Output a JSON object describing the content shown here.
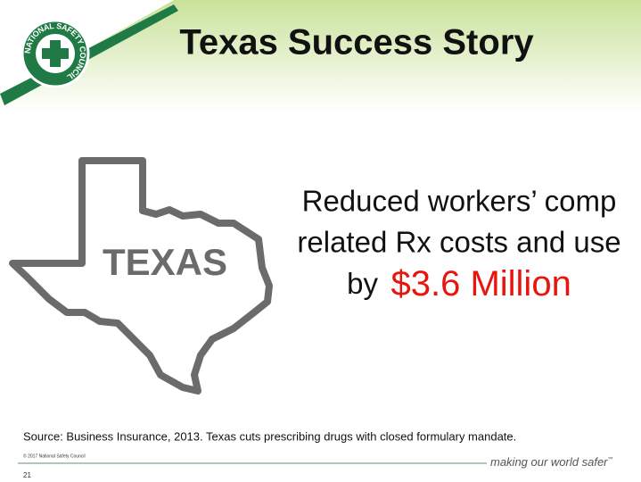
{
  "header": {
    "title": "Texas Success Story",
    "logo_text": "NATIONAL SAFETY COUNCIL"
  },
  "map": {
    "label": "TEXAS"
  },
  "statement": {
    "line1": "Reduced workers’ comp",
    "line2": "related Rx costs and use",
    "line3_prefix": "by",
    "highlight": "$3.6 Million"
  },
  "source": "Source: Business Insurance, 2013. Texas cuts prescribing drugs with closed formulary mandate.",
  "footer": {
    "copyright": "© 2017 National Safety Council",
    "tagline": "making our world safer",
    "trademark": "™",
    "page": "21"
  }
}
